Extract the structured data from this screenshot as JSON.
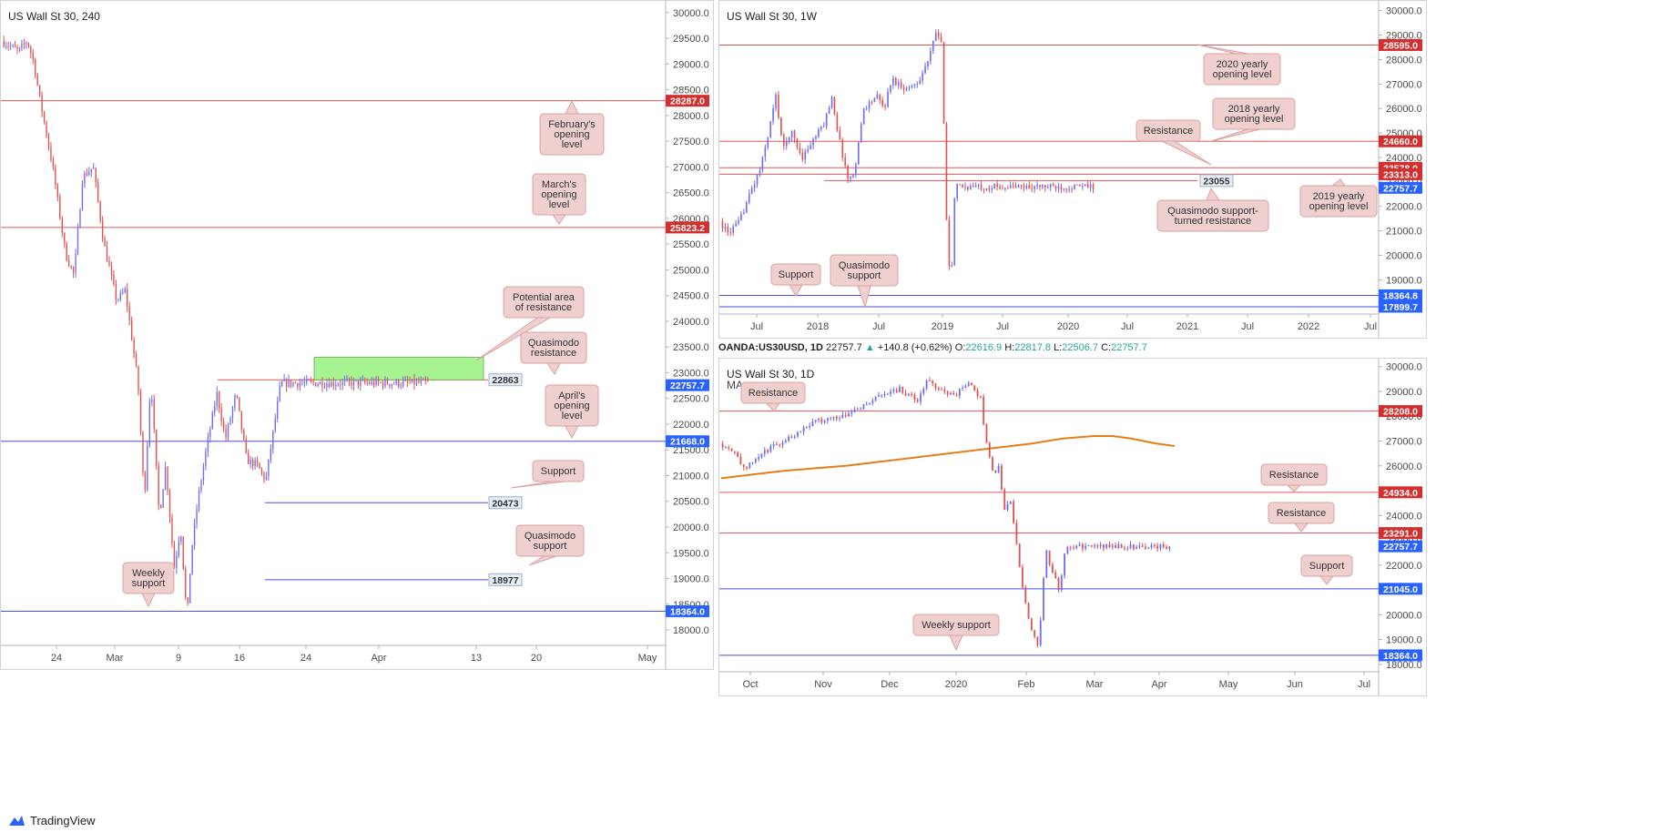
{
  "colors": {
    "up": "#6e6df3",
    "down": "#e05252",
    "resistance_line": "#e05656",
    "support_line": "#4e4ee0",
    "label_red": "#d32f2f",
    "label_blue": "#2962ff",
    "label_grey_bg": "#e8eef6",
    "callout_bg": "#f0cfcf",
    "callout_border": "#d9a3a3",
    "zone_fill": "#a6f391",
    "ma_line": "#e37e18",
    "axis_text": "#4b4b4b",
    "ohlc_green": "#26a69a"
  },
  "brand": {
    "logo_text": "TradingView",
    "logo_icon": "tradingview-cloud-icon"
  },
  "ohlc_header": {
    "symbol": "OANDA:US30USD, 1D",
    "close": "22757.7",
    "change": "+140.8 (+0.62%)",
    "o_label": "O:",
    "o": "22616.9",
    "h_label": "H:",
    "h": "22817.8",
    "l_label": "L:",
    "l": "22506.7",
    "c_label": "C:",
    "c": "22757.7"
  },
  "chart_data": [
    {
      "id": "h4",
      "type": "candlestick",
      "title": "US Wall St 30, 240",
      "ylim": [
        17700,
        30050
      ],
      "y_ticks": [
        18000,
        18500,
        19000,
        19500,
        20000,
        20500,
        21000,
        21500,
        22000,
        22500,
        23000,
        23500,
        24000,
        24500,
        25000,
        25500,
        26000,
        26500,
        27000,
        27500,
        28000,
        28500,
        29000,
        29500,
        30000
      ],
      "x_ticks": [
        "24",
        "Mar",
        "9",
        "16",
        "24",
        "Apr",
        "13",
        "20",
        "May"
      ],
      "price_path": [
        [
          0,
          29450
        ],
        [
          0.04,
          29250
        ],
        [
          0.06,
          29450
        ],
        [
          0.075,
          29050
        ],
        [
          0.09,
          28300
        ],
        [
          0.12,
          27000
        ],
        [
          0.15,
          25300
        ],
        [
          0.17,
          24900
        ],
        [
          0.19,
          26800
        ],
        [
          0.215,
          27000
        ],
        [
          0.24,
          25500
        ],
        [
          0.27,
          24400
        ],
        [
          0.29,
          24600
        ],
        [
          0.32,
          22800
        ],
        [
          0.335,
          20500
        ],
        [
          0.35,
          22900
        ],
        [
          0.37,
          20200
        ],
        [
          0.385,
          21200
        ],
        [
          0.405,
          19200
        ],
        [
          0.42,
          20000
        ],
        [
          0.435,
          18200
        ],
        [
          0.445,
          19500
        ],
        [
          0.46,
          20500
        ],
        [
          0.48,
          21500
        ],
        [
          0.505,
          22600
        ],
        [
          0.525,
          21700
        ],
        [
          0.55,
          22600
        ],
        [
          0.575,
          21300
        ],
        [
          0.6,
          21200
        ],
        [
          0.62,
          20900
        ],
        [
          0.64,
          22000
        ],
        [
          0.655,
          22800
        ]
      ],
      "levels": [
        {
          "value": 28287.0,
          "label": "28287.0",
          "kind": "resistance"
        },
        {
          "value": 25823.2,
          "label": "25823.2",
          "kind": "resistance"
        },
        {
          "value": 22863,
          "label": "22863",
          "kind": "resistance-grey"
        },
        {
          "value": 22757.7,
          "label": "22757.7",
          "kind": "current"
        },
        {
          "value": 21668.0,
          "label": "21668.0",
          "kind": "support-blue"
        },
        {
          "value": 20473,
          "label": "20473",
          "kind": "support-grey"
        },
        {
          "value": 18977,
          "label": "18977",
          "kind": "support-grey"
        },
        {
          "value": 18364.0,
          "label": "18364.0",
          "kind": "support-blue"
        }
      ],
      "zone": {
        "from": 22863,
        "to": 23300
      },
      "annotations": [
        "February's opening level",
        "March's opening level",
        "Potential area of resistance",
        "Quasimodo resistance",
        "April's opening level",
        "Support",
        "Quasimodo support",
        "Weekly support"
      ]
    },
    {
      "id": "weekly",
      "type": "candlestick",
      "title": "US Wall St 30, 1W",
      "ylim": [
        17600,
        30100
      ],
      "y_ticks": [
        18000,
        19000,
        20000,
        21000,
        22000,
        23000,
        24000,
        25000,
        26000,
        27000,
        28000,
        29000,
        30000
      ],
      "x_ticks": [
        "Jul",
        "2018",
        "Jul",
        "2019",
        "Jul",
        "2020",
        "Jul",
        "2021",
        "Jul",
        "2022",
        "Jul"
      ],
      "price_path": [
        [
          0,
          21400
        ],
        [
          0.02,
          20900
        ],
        [
          0.05,
          21300
        ],
        [
          0.08,
          22500
        ],
        [
          0.11,
          23600
        ],
        [
          0.13,
          25000
        ],
        [
          0.15,
          26500
        ],
        [
          0.17,
          24300
        ],
        [
          0.19,
          25100
        ],
        [
          0.22,
          24000
        ],
        [
          0.25,
          24700
        ],
        [
          0.28,
          25400
        ],
        [
          0.3,
          26500
        ],
        [
          0.32,
          24700
        ],
        [
          0.345,
          23000
        ],
        [
          0.36,
          23400
        ],
        [
          0.385,
          26000
        ],
        [
          0.42,
          26500
        ],
        [
          0.44,
          26000
        ],
        [
          0.46,
          27200
        ],
        [
          0.5,
          26800
        ],
        [
          0.53,
          27100
        ],
        [
          0.56,
          28000
        ],
        [
          0.58,
          29200
        ],
        [
          0.595,
          28500
        ],
        [
          0.6,
          25500
        ],
        [
          0.61,
          20000
        ],
        [
          0.62,
          19000
        ],
        [
          0.63,
          22800
        ]
      ],
      "levels": [
        {
          "value": 28595.0,
          "label": "28595.0",
          "kind": "resistance"
        },
        {
          "value": 24660.0,
          "label": "24660.0",
          "kind": "resistance"
        },
        {
          "value": 23578.0,
          "label": "23578.0",
          "kind": "resistance"
        },
        {
          "value": 23313.0,
          "label": "23313.0",
          "kind": "resistance"
        },
        {
          "value": 23055,
          "label": "23055",
          "kind": "resistance-grey"
        },
        {
          "value": 22757.7,
          "label": "22757.7",
          "kind": "current"
        },
        {
          "value": 18364.8,
          "label": "18364.8",
          "kind": "support-blue"
        },
        {
          "value": 17899.7,
          "label": "17899.7",
          "kind": "support-blue"
        }
      ],
      "annotations": [
        "2020 yearly opening level",
        "2018 yearly opening level",
        "Resistance",
        "2019 yearly opening level",
        "Quasimodo support-turned resistance",
        "Support",
        "Quasimodo support"
      ]
    },
    {
      "id": "daily",
      "type": "candlestick",
      "title": "US Wall St 30, 1D",
      "indicator": "MA",
      "ylim": [
        17700,
        30100
      ],
      "y_ticks": [
        18000,
        19000,
        20000,
        21000,
        22000,
        23000,
        24000,
        25000,
        26000,
        27000,
        28000,
        29000,
        30000
      ],
      "x_ticks": [
        "Oct",
        "Nov",
        "Dec",
        "2020",
        "Feb",
        "Mar",
        "Apr",
        "May",
        "Jun",
        "Jul"
      ],
      "price_path": [
        [
          0,
          26900
        ],
        [
          0.035,
          26600
        ],
        [
          0.055,
          25800
        ],
        [
          0.08,
          26300
        ],
        [
          0.12,
          26800
        ],
        [
          0.16,
          27200
        ],
        [
          0.2,
          27700
        ],
        [
          0.24,
          27900
        ],
        [
          0.27,
          28000
        ],
        [
          0.3,
          28300
        ],
        [
          0.33,
          28500
        ],
        [
          0.36,
          28900
        ],
        [
          0.4,
          29100
        ],
        [
          0.44,
          28600
        ],
        [
          0.46,
          29400
        ],
        [
          0.5,
          29000
        ],
        [
          0.52,
          28800
        ],
        [
          0.55,
          29300
        ],
        [
          0.565,
          29100
        ],
        [
          0.58,
          28700
        ],
        [
          0.59,
          27300
        ],
        [
          0.61,
          25500
        ],
        [
          0.62,
          26000
        ],
        [
          0.635,
          24000
        ],
        [
          0.645,
          24800
        ],
        [
          0.66,
          22800
        ],
        [
          0.67,
          21500
        ],
        [
          0.69,
          19500
        ],
        [
          0.7,
          19200
        ],
        [
          0.71,
          18600
        ],
        [
          0.715,
          20500
        ],
        [
          0.725,
          22600
        ],
        [
          0.74,
          21700
        ],
        [
          0.755,
          21000
        ],
        [
          0.765,
          22200
        ],
        [
          0.77,
          22750
        ]
      ],
      "ma_200": [
        [
          0,
          25500
        ],
        [
          0.1,
          25800
        ],
        [
          0.2,
          26000
        ],
        [
          0.3,
          26300
        ],
        [
          0.4,
          26600
        ],
        [
          0.5,
          26900
        ],
        [
          0.55,
          27100
        ],
        [
          0.6,
          27200
        ],
        [
          0.63,
          27200
        ],
        [
          0.66,
          27100
        ],
        [
          0.7,
          26900
        ],
        [
          0.73,
          26800
        ]
      ],
      "levels": [
        {
          "value": 28208.0,
          "label": "28208.0",
          "kind": "resistance"
        },
        {
          "value": 24934.0,
          "label": "24934.0",
          "kind": "resistance"
        },
        {
          "value": 23291.0,
          "label": "23291.0",
          "kind": "resistance"
        },
        {
          "value": 22757.7,
          "label": "22757.7",
          "kind": "current"
        },
        {
          "value": 21045.0,
          "label": "21045.0",
          "kind": "support-blue"
        },
        {
          "value": 18364.0,
          "label": "18364.0",
          "kind": "support-blue"
        }
      ],
      "annotations": [
        "Resistance",
        "Resistance",
        "Resistance",
        "Support",
        "Weekly support"
      ]
    }
  ]
}
